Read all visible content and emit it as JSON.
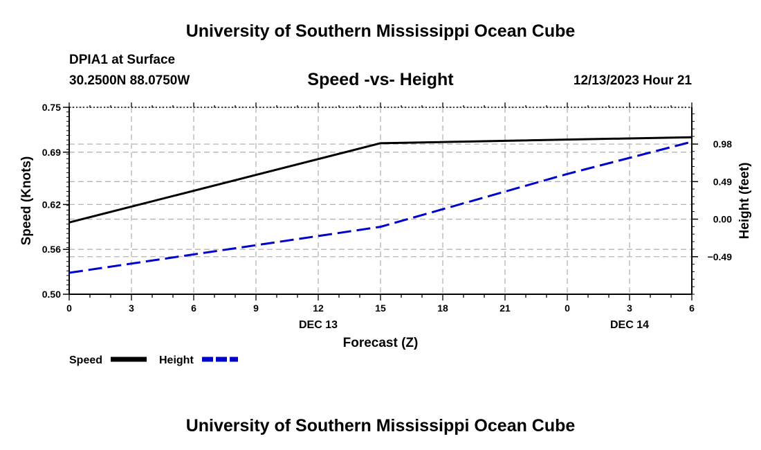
{
  "page": {
    "top_title": "University of Southern Mississippi Ocean Cube",
    "bottom_title": "University of Southern Mississippi Ocean Cube",
    "station_line": "DPIA1 at Surface",
    "coords_line": "30.2500N  88.0750W",
    "chart_title": "Speed -vs- Height",
    "timestamp": "12/13/2023 Hour 21"
  },
  "chart_data": {
    "type": "line",
    "title": "Speed -vs- Height",
    "xlabel": "Forecast (Z)",
    "ylabel": "Speed (Knots)",
    "y2label": "Height (feet)",
    "x": [
      0,
      3,
      6,
      9,
      12,
      15,
      18,
      21,
      24,
      27,
      30
    ],
    "xlim": [
      0,
      30
    ],
    "x_tick_labels": [
      "0",
      "3",
      "6",
      "9",
      "12",
      "15",
      "18",
      "21",
      "0",
      "3",
      "6"
    ],
    "date_labels": [
      {
        "x": 12,
        "label": "DEC 13"
      },
      {
        "x": 27,
        "label": "DEC 14"
      }
    ],
    "ylim": [
      0.5,
      0.75
    ],
    "y_ticks": [
      0.5,
      0.56,
      0.62,
      0.69,
      0.75
    ],
    "y_tick_labels": [
      "0.50",
      "0.56",
      "0.62",
      "0.69",
      "0.75"
    ],
    "y2lim": [
      -0.98,
      1.46
    ],
    "y2_ticks": [
      -0.49,
      0.0,
      0.49,
      0.98
    ],
    "y2_tick_labels": [
      "−0.49",
      "0.00",
      "0.49",
      "0.98"
    ],
    "grid": true,
    "series": [
      {
        "name": "Speed",
        "axis": "left",
        "color": "#000000",
        "style": "solid",
        "x": [
          0,
          15,
          30
        ],
        "values": [
          0.596,
          0.702,
          0.71
        ]
      },
      {
        "name": "Height",
        "axis": "right",
        "color": "#0000cc",
        "style": "dashed",
        "x": [
          0,
          15,
          24,
          30
        ],
        "values": [
          -0.7,
          -0.1,
          0.59,
          1.01
        ]
      }
    ],
    "legend": [
      {
        "label": "Speed",
        "color": "#000000",
        "style": "solid"
      },
      {
        "label": "Height",
        "color": "#0000cc",
        "style": "dashed"
      }
    ]
  }
}
